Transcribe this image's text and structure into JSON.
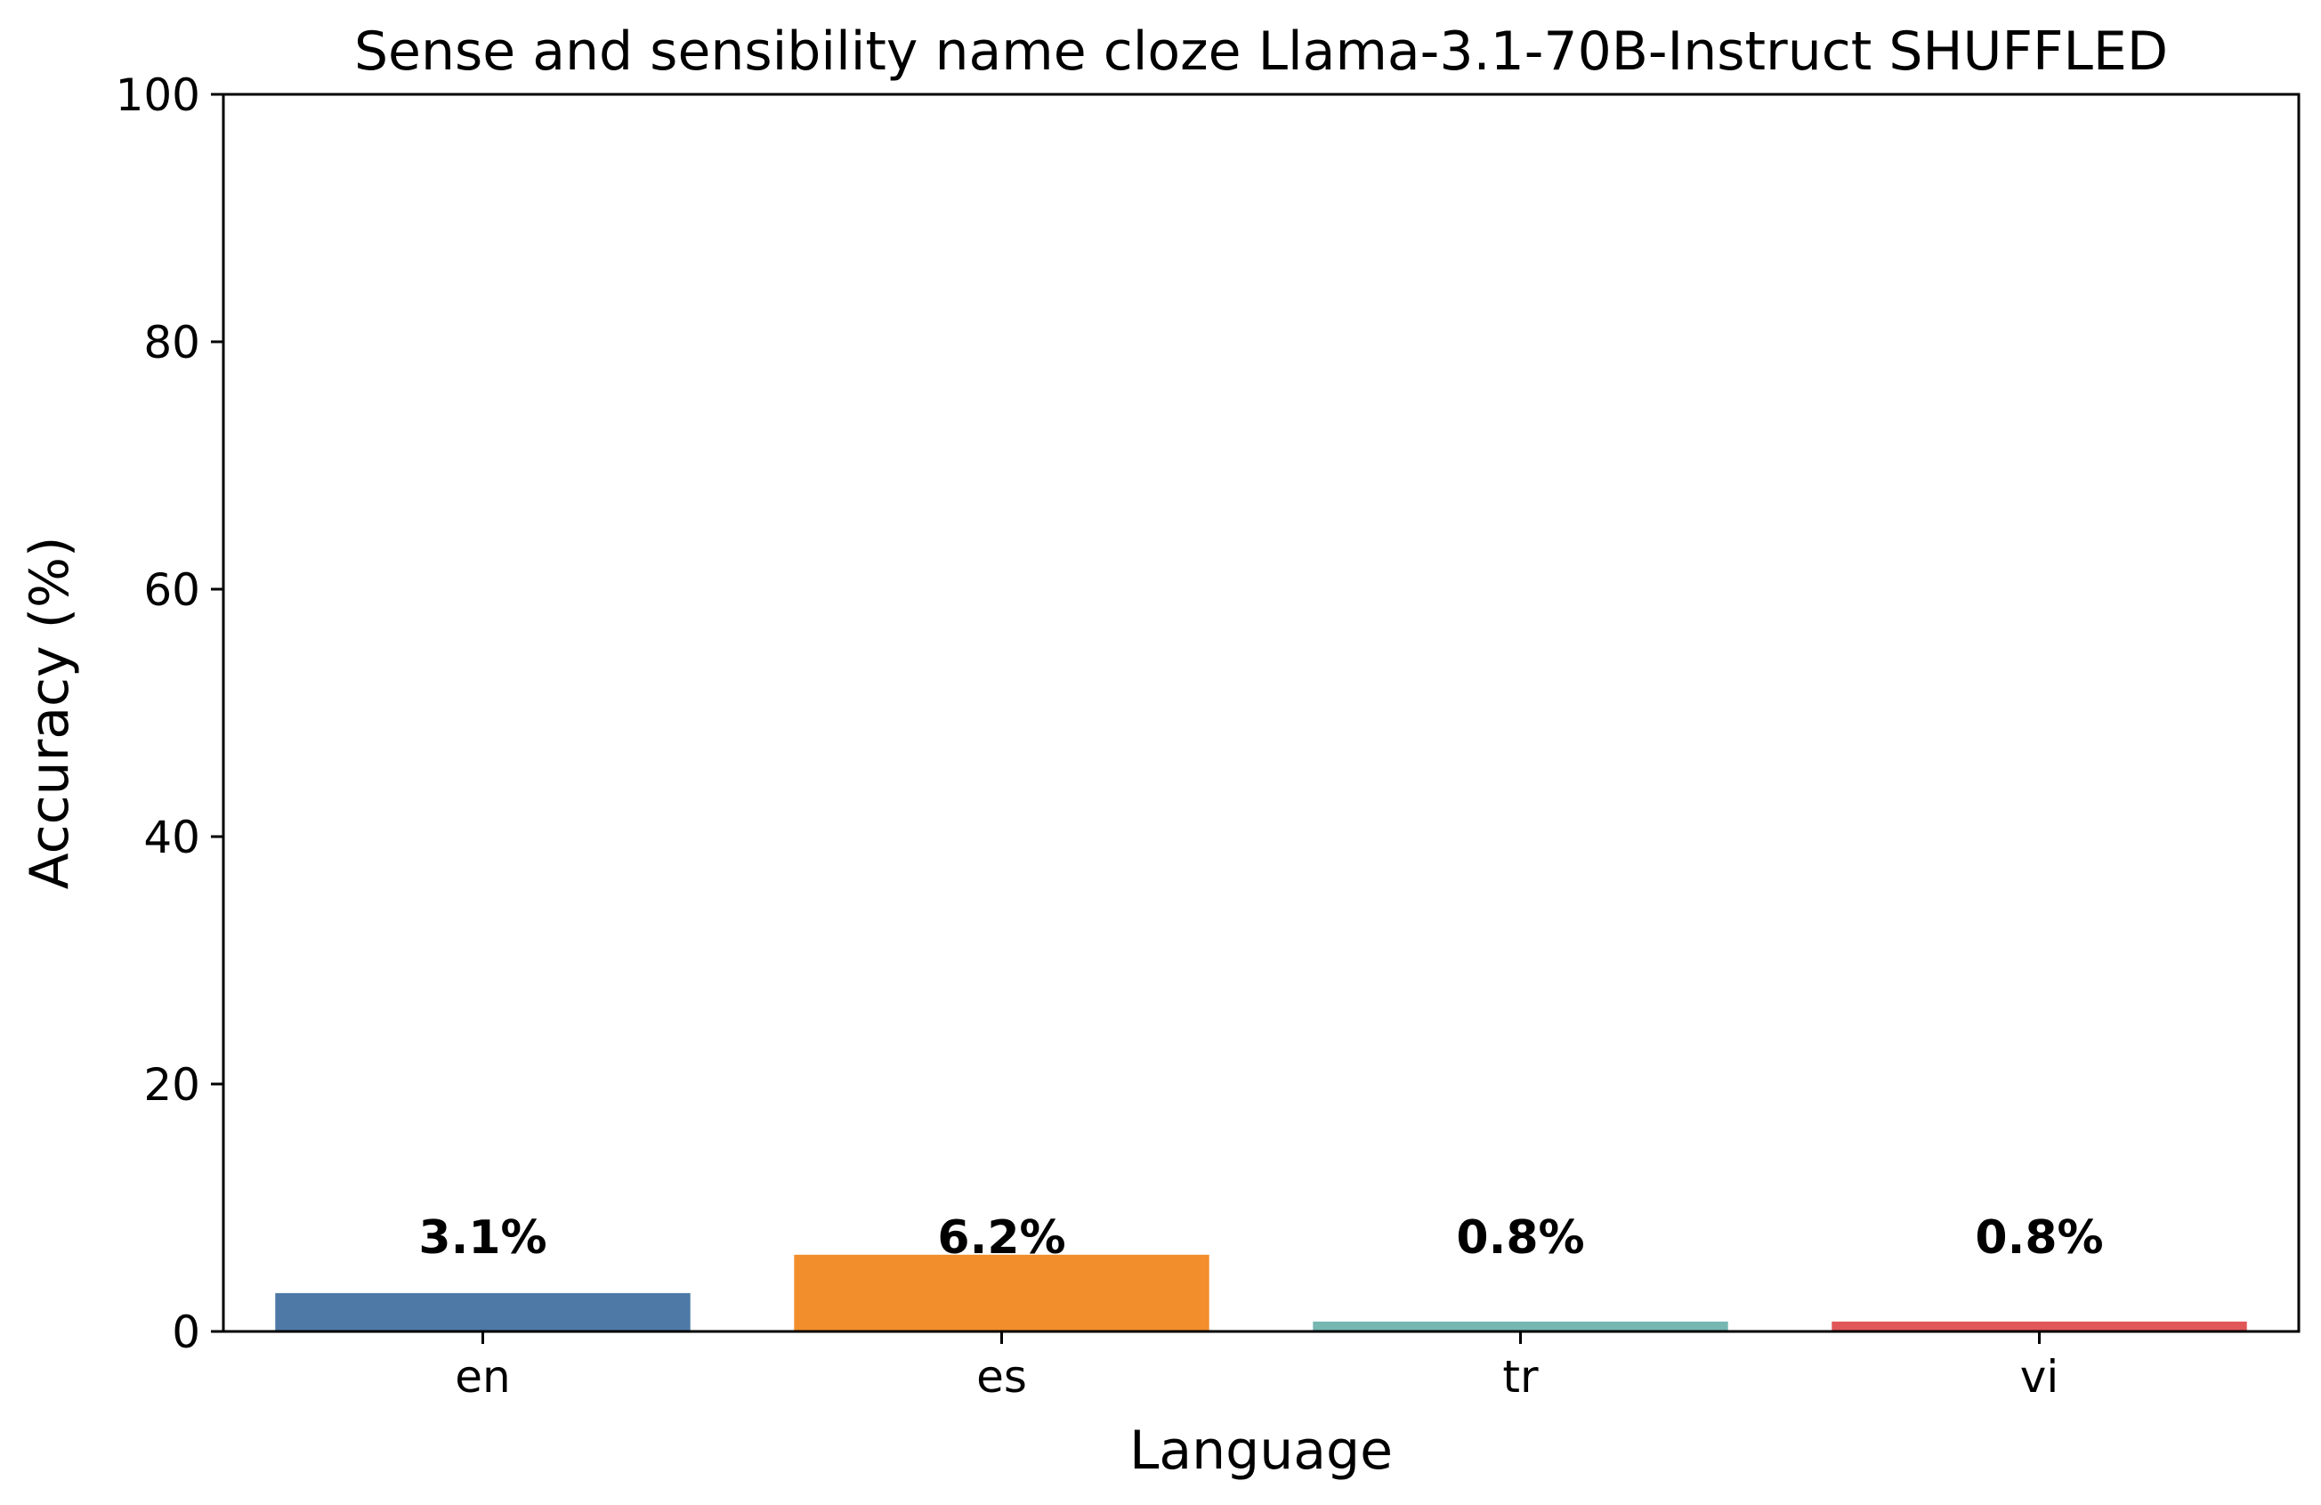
{
  "chart_data": {
    "type": "bar",
    "title": "Sense and sensibility name cloze Llama-3.1-70B-Instruct SHUFFLED",
    "xlabel": "Language",
    "ylabel": "Accuracy (%)",
    "categories": [
      "en",
      "es",
      "tr",
      "vi"
    ],
    "values": [
      3.1,
      6.2,
      0.8,
      0.8
    ],
    "data_labels": [
      "3.1%",
      "6.2%",
      "0.8%",
      "0.8%"
    ],
    "colors": [
      "#4e79a7",
      "#f28e2b",
      "#76b7b2",
      "#e15759"
    ],
    "ylim": [
      0,
      100
    ],
    "yticks": [
      0,
      20,
      40,
      60,
      80,
      100
    ],
    "grid": false,
    "legend": "none"
  }
}
